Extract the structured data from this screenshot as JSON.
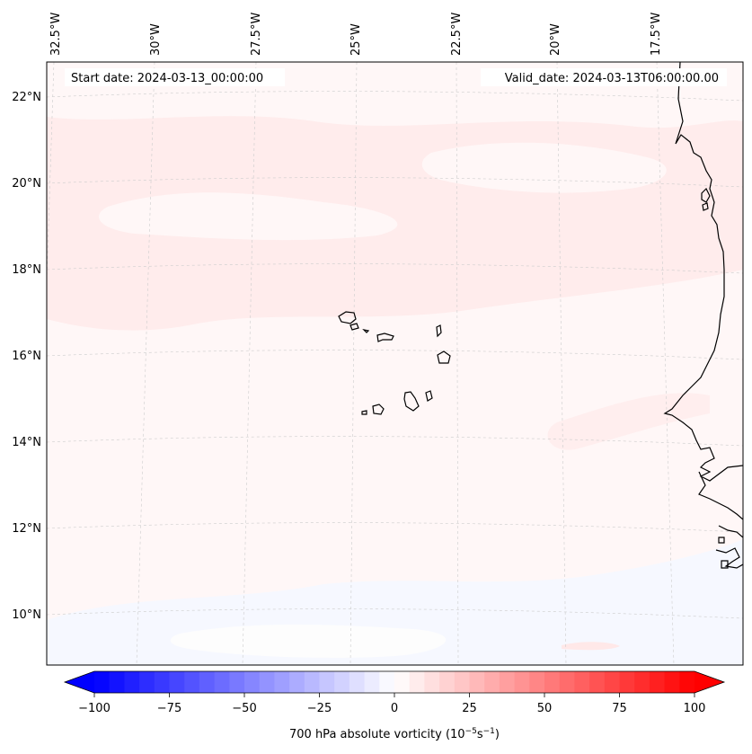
{
  "map": {
    "start_date": "Start date: 2024-03-13_00:00:00",
    "valid_date": "Valid_date: 2024-03-13T06:00:00.00",
    "lon_labels": [
      "32.5°W",
      "30°W",
      "27.5°W",
      "25°W",
      "22.5°W",
      "20°W",
      "17.5°W"
    ],
    "lat_labels": [
      "22°N",
      "20°N",
      "18°N",
      "16°N",
      "14°N",
      "12°N",
      "10°N"
    ]
  },
  "colorbar": {
    "label_main": "700 hPa absolute vorticity (10",
    "label_exp1": "−5",
    "label_mid": "s",
    "label_exp2": "−1",
    "label_end": ")",
    "min": -100,
    "max": 100,
    "tick_labels": [
      "−100",
      "−75",
      "−50",
      "−25",
      "0",
      "25",
      "50",
      "75",
      "100"
    ]
  },
  "colors": {
    "negative": "#0000ff",
    "positive": "#ff0000",
    "coast": "#000000"
  }
}
